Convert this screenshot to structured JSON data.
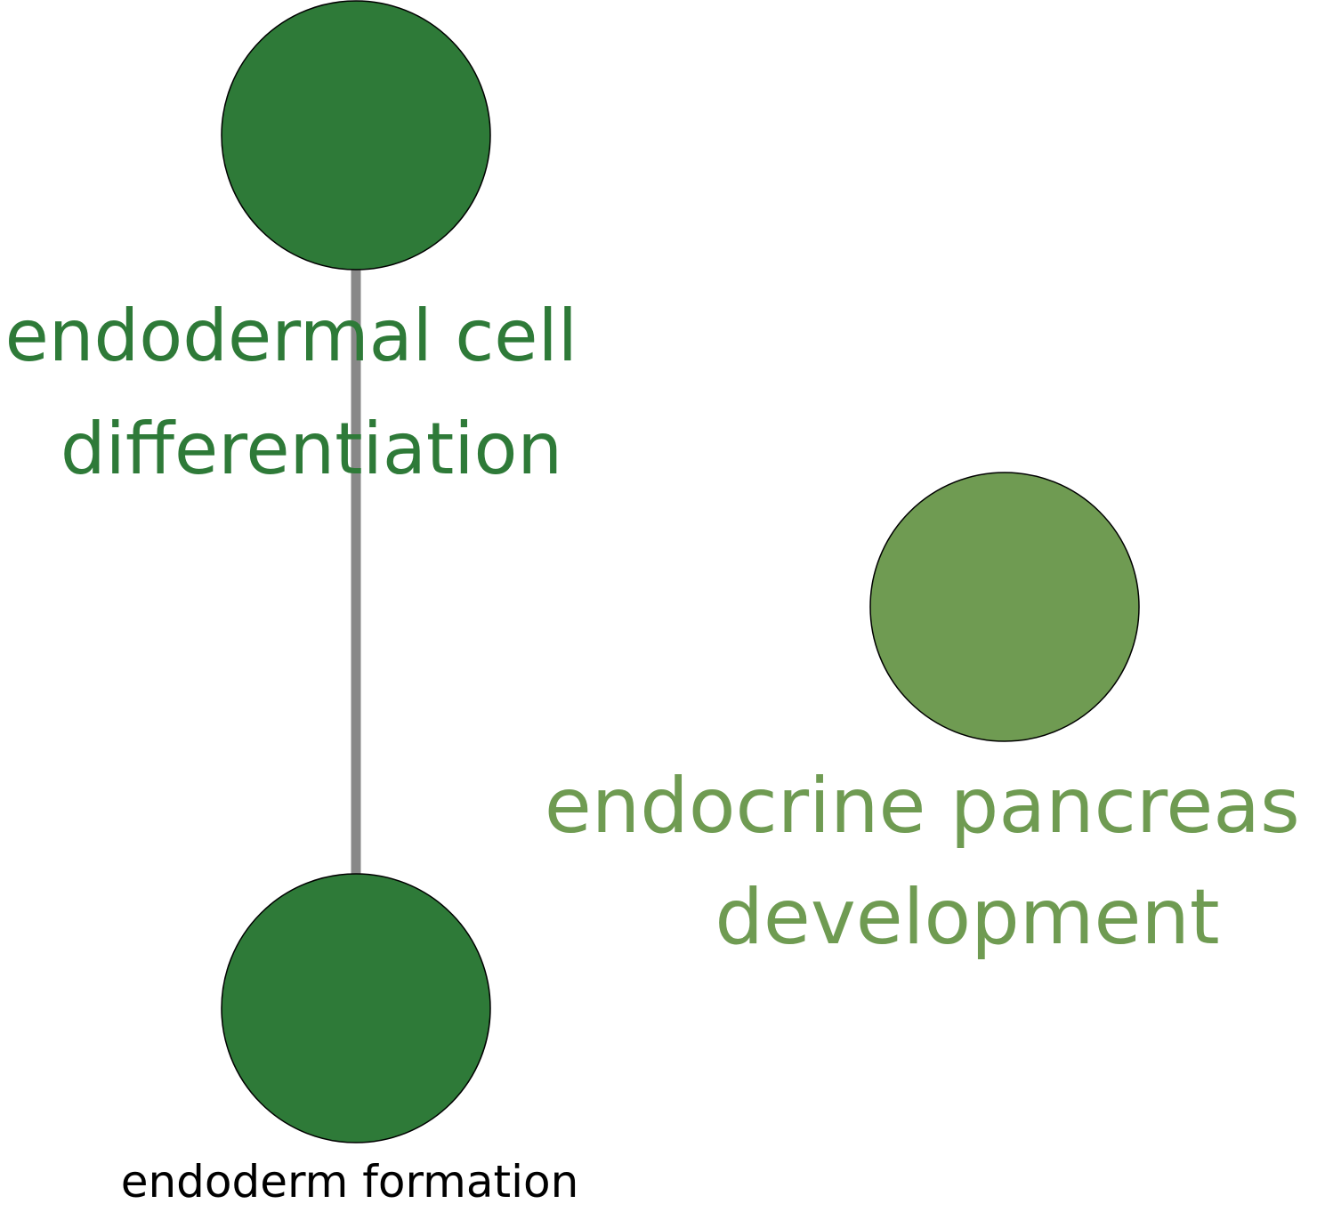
{
  "colors": {
    "dark_green": "#2e7a38",
    "light_green": "#6f9b52",
    "edge_gray": "#888888",
    "node_outline": "#000000",
    "label_black": "#000000"
  },
  "nodes": [
    {
      "id": "endodermal-cell-differentiation",
      "label_lines": [
        "endodermal cell",
        "differentiation"
      ],
      "fill": "dark_green",
      "label_color": "dark_green"
    },
    {
      "id": "endoderm-formation",
      "label_lines": [
        "endoderm formation"
      ],
      "fill": "dark_green",
      "label_color": "label_black"
    },
    {
      "id": "endocrine-pancreas-development",
      "label_lines": [
        "endocrine pancreas",
        "development"
      ],
      "fill": "light_green",
      "label_color": "light_green"
    }
  ],
  "edges": [
    {
      "source": "endodermal-cell-differentiation",
      "target": "endoderm-formation"
    }
  ]
}
